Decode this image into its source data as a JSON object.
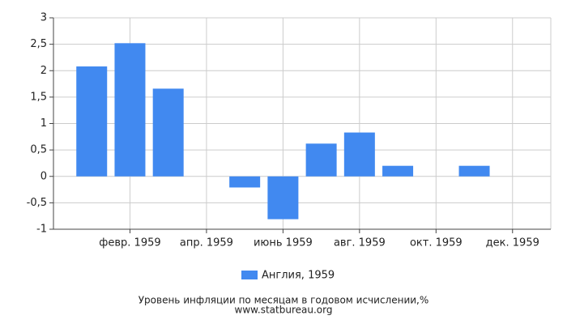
{
  "chart_data": {
    "type": "bar",
    "title": "Уровень инфляции по месяцам в годовом исчислении,%",
    "source": "www.statbureau.org",
    "categories": [
      null,
      "февр. 1959",
      null,
      "апр. 1959",
      null,
      "июнь 1959",
      null,
      "авг. 1959",
      null,
      "окт. 1959",
      null,
      "дек. 1959"
    ],
    "series": [
      {
        "name": "Англия, 1959",
        "color": "#4189f0",
        "values": [
          2.08,
          2.52,
          1.66,
          0,
          -0.21,
          -0.81,
          0.62,
          0.83,
          0.2,
          0,
          0.2,
          0
        ]
      }
    ],
    "ylim": [
      -1,
      3
    ],
    "yticks": [
      -1,
      {
        "value": -0.5,
        "label": "-0,5"
      },
      0,
      {
        "value": 0.5,
        "label": "0,5"
      },
      1,
      {
        "value": 1.5,
        "label": "1,5"
      },
      2,
      {
        "value": 2.5,
        "label": "2,5"
      },
      3
    ],
    "grid": true,
    "legend": "bottom"
  }
}
